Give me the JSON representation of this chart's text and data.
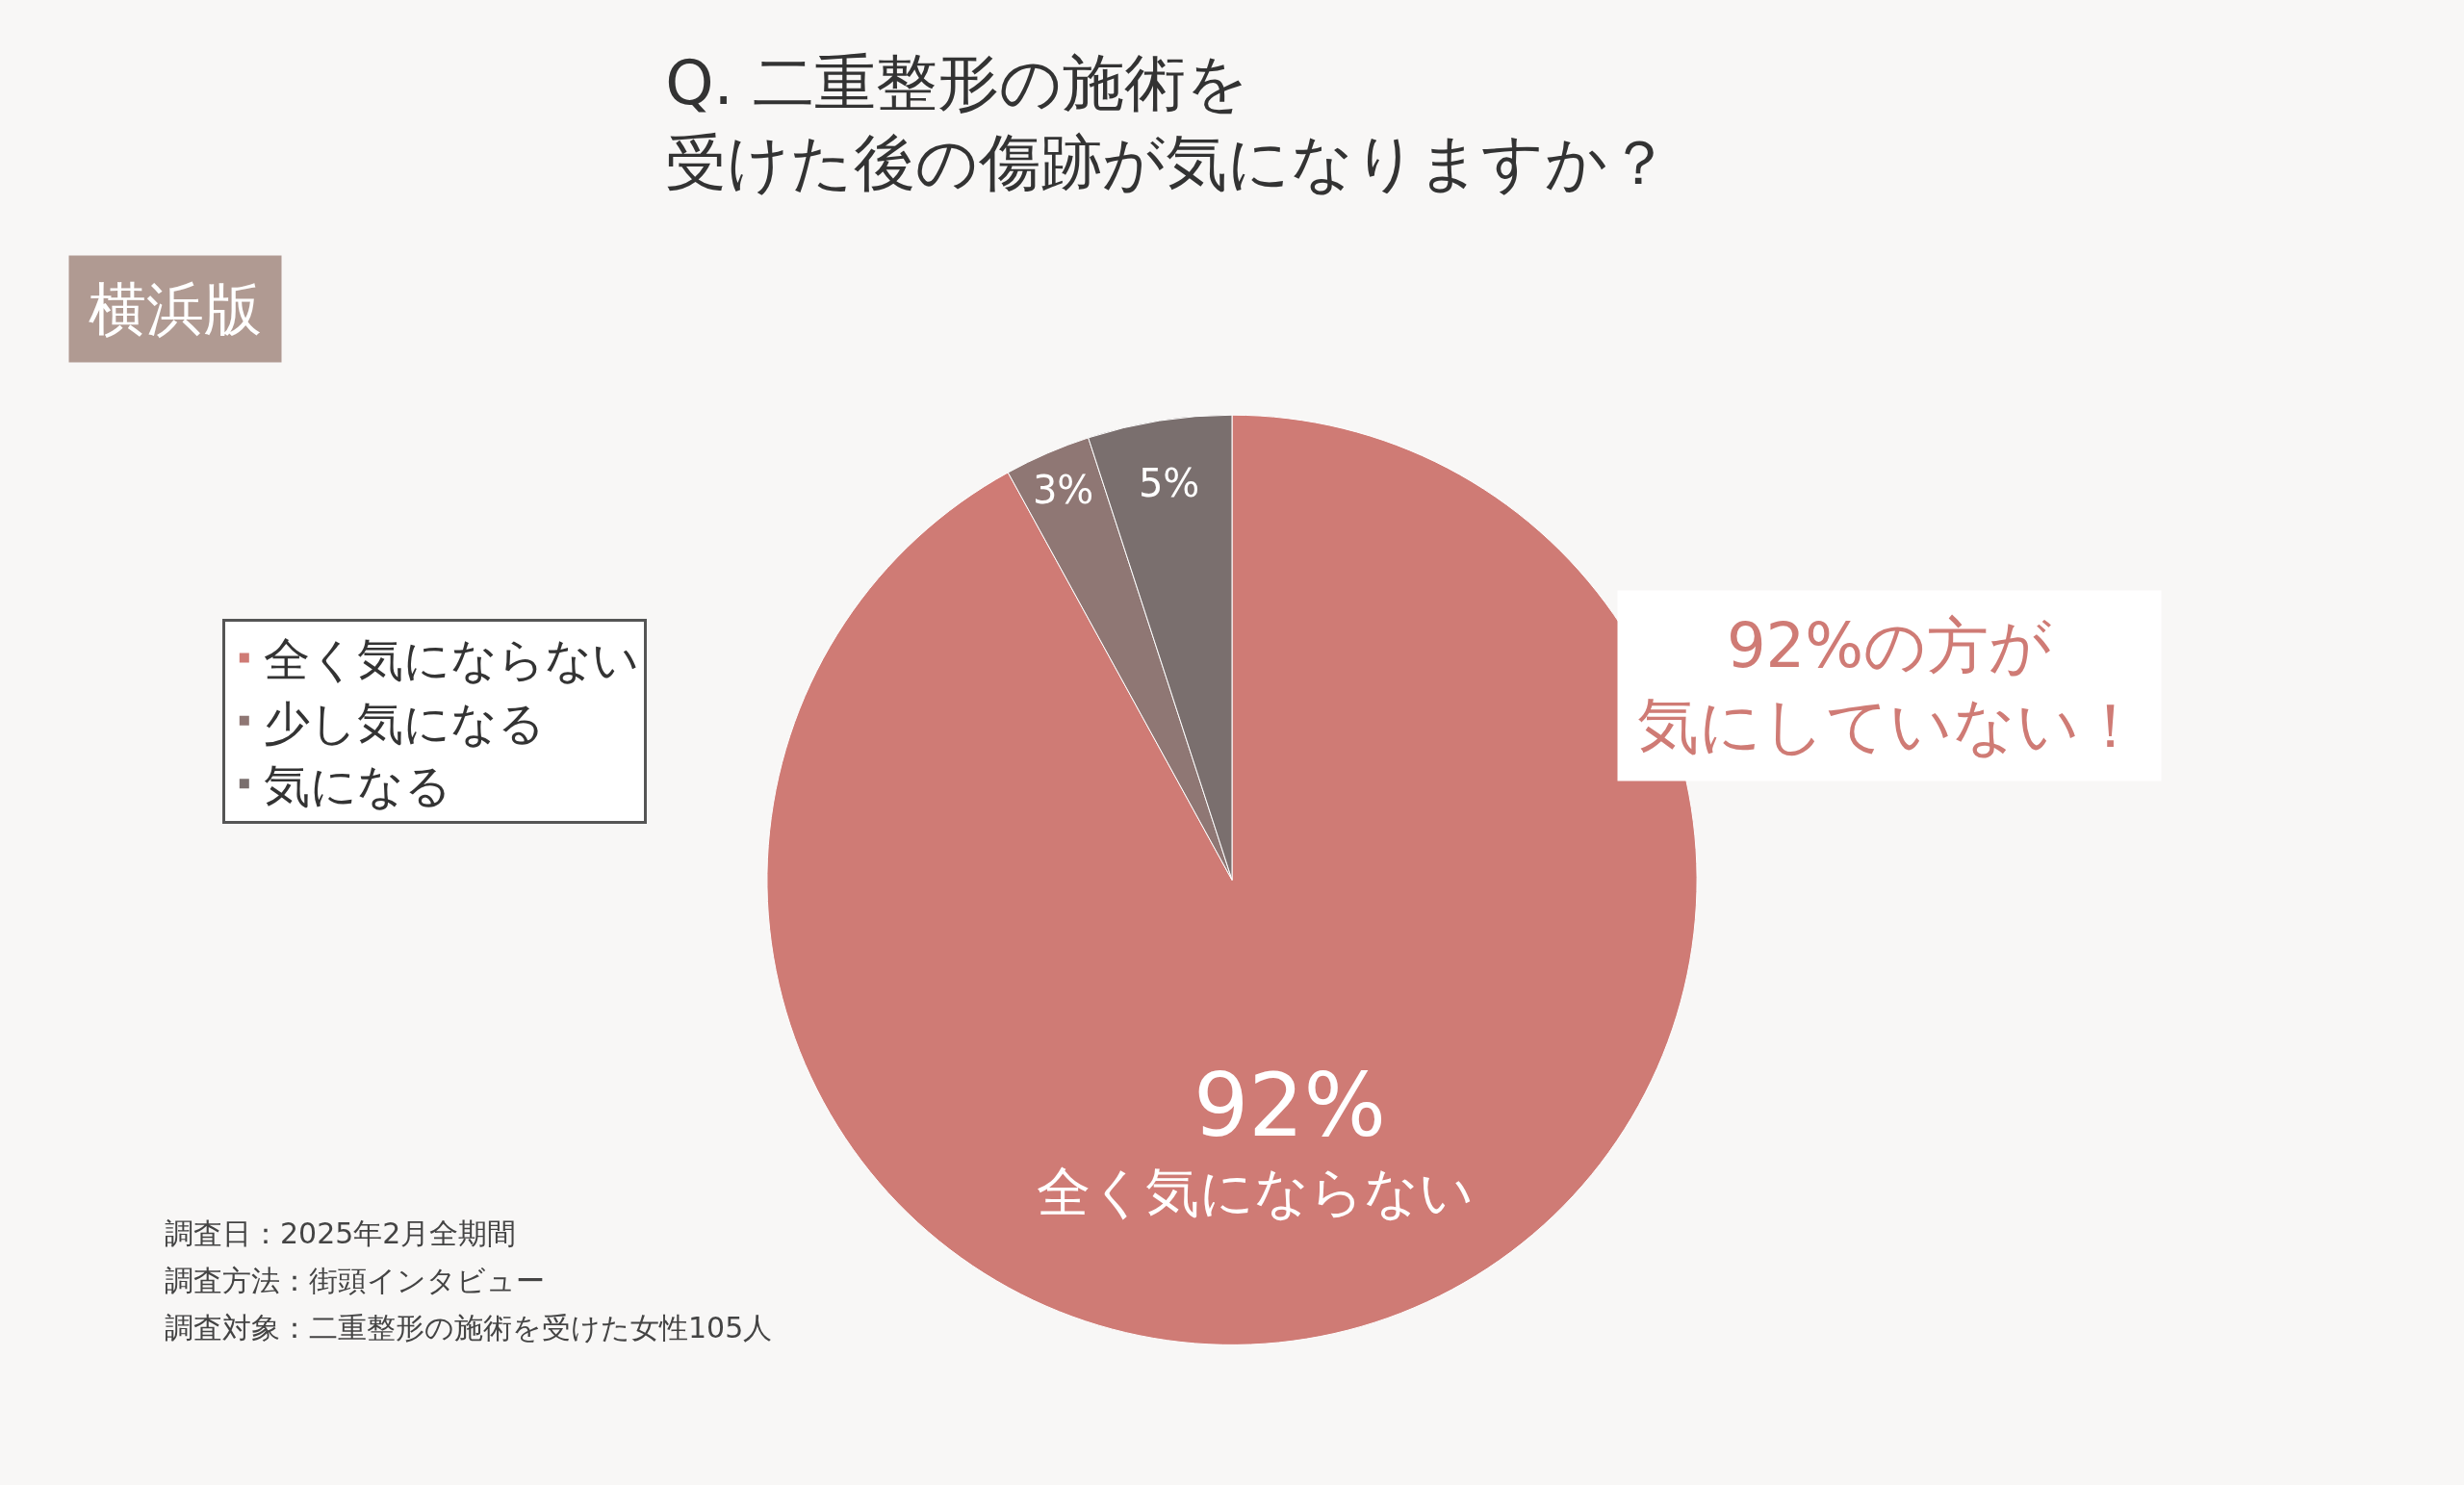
{
  "chart_data": {
    "type": "pie",
    "title": "Q. 二重整形の施術を受けた後の傷跡が気になりますか？",
    "categories": [
      "全く気にならない",
      "少し気になる",
      "気になる"
    ],
    "values": [
      92,
      3,
      5
    ],
    "colors": [
      "#cf7b75",
      "#8f7774",
      "#7a6f6e"
    ],
    "value_labels": [
      "92%",
      "3%",
      "5%"
    ],
    "legend": "left",
    "annotations": [
      "横浜版",
      "92%の方が気にしていない！",
      "全く気にならない",
      "調査日：2025年2月全期間",
      "調査方法：街頭インタビュー",
      "調査対象：二重整形の施術を受けた女性105人"
    ]
  }
}
